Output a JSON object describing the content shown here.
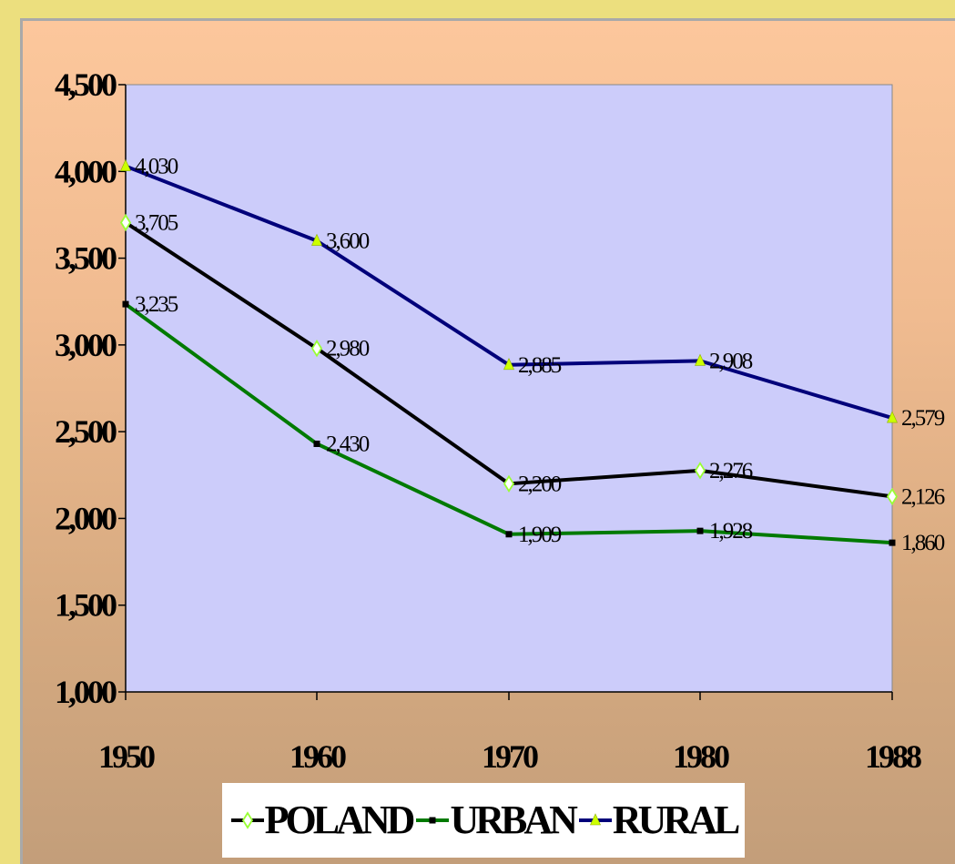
{
  "chart_data": {
    "type": "line",
    "title": "",
    "xlabel": "",
    "ylabel": "",
    "categories": [
      "1950",
      "1960",
      "1970",
      "1980",
      "1988"
    ],
    "ylim": [
      1000,
      4500
    ],
    "yticks": [
      1000,
      1500,
      2000,
      2500,
      3000,
      3500,
      4000,
      4500
    ],
    "ytick_labels": [
      "1,000",
      "1,500",
      "2,000",
      "2,500",
      "3,000",
      "3,500",
      "4,000",
      "4,500"
    ],
    "grid": false,
    "plot_background": "#ccccfa",
    "legend_position": "bottom",
    "series": [
      {
        "name": "POLAND",
        "color": "#000000",
        "marker": "diamond",
        "marker_color": "#99ff33",
        "values": [
          3705,
          2980,
          2200,
          2276,
          2126
        ],
        "labels": [
          "3,705",
          "2,980",
          "2,200",
          "2,276",
          "2,126"
        ]
      },
      {
        "name": "URBAN",
        "color": "#007a00",
        "marker": "square",
        "marker_color": "#000000",
        "values": [
          3235,
          2430,
          1909,
          1928,
          1860
        ],
        "labels": [
          "3,235",
          "2,430",
          "1,909",
          "1,928",
          "1,860"
        ]
      },
      {
        "name": "RURAL",
        "color": "#00007a",
        "marker": "triangle",
        "marker_color": "#ccff00",
        "values": [
          4030,
          3600,
          2885,
          2908,
          2579
        ],
        "labels": [
          "4,030",
          "3,600",
          "2,885",
          "2,908",
          "2,579"
        ]
      }
    ]
  }
}
